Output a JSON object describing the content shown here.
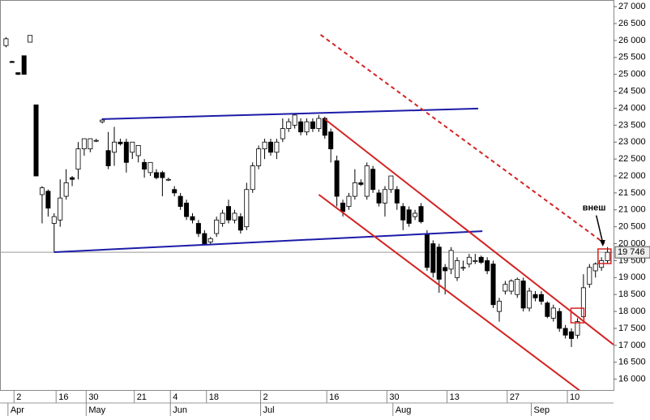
{
  "chart_data": {
    "type": "candlestick",
    "xlim": [
      0,
      102
    ],
    "ylim": [
      15800,
      27100
    ],
    "yticks": [
      {
        "value": 16000,
        "label": "16 000"
      },
      {
        "value": 16500,
        "label": "16 500"
      },
      {
        "value": 17000,
        "label": "17 000"
      },
      {
        "value": 17500,
        "label": "17 500"
      },
      {
        "value": 18000,
        "label": "18 000"
      },
      {
        "value": 18500,
        "label": "18 500"
      },
      {
        "value": 19000,
        "label": "19 000"
      },
      {
        "value": 19500,
        "label": "19 500"
      },
      {
        "value": 20000,
        "label": "20 000"
      },
      {
        "value": 20500,
        "label": "20 500"
      },
      {
        "value": 21000,
        "label": "21 000"
      },
      {
        "value": 21500,
        "label": "21 500"
      },
      {
        "value": 22000,
        "label": "22 000"
      },
      {
        "value": 22500,
        "label": "22 500"
      },
      {
        "value": 23000,
        "label": "23 000"
      },
      {
        "value": 23500,
        "label": "23 500"
      },
      {
        "value": 24000,
        "label": "24 000"
      },
      {
        "value": 24500,
        "label": "24 500"
      },
      {
        "value": 25000,
        "label": "25 000"
      },
      {
        "value": 25500,
        "label": "25 500"
      },
      {
        "value": 26000,
        "label": "26 000"
      },
      {
        "value": 26500,
        "label": "26 500"
      },
      {
        "value": 27000,
        "label": "27 000"
      }
    ],
    "xticks": [
      {
        "value": 3,
        "label": "2"
      },
      {
        "value": 10,
        "label": "16"
      },
      {
        "value": 15,
        "label": "30"
      },
      {
        "value": 23,
        "label": "21"
      },
      {
        "value": 29,
        "label": "4"
      },
      {
        "value": 35,
        "label": "18"
      },
      {
        "value": 44,
        "label": "2"
      },
      {
        "value": 55,
        "label": "16"
      },
      {
        "value": 65,
        "label": "30"
      },
      {
        "value": 75,
        "label": "13"
      },
      {
        "value": 85,
        "label": "27"
      },
      {
        "value": 95,
        "label": "10"
      }
    ],
    "month_ticks": [
      {
        "value": 2,
        "label": "Apr"
      },
      {
        "value": 15,
        "label": "May"
      },
      {
        "value": 29,
        "label": "Jun"
      },
      {
        "value": 44,
        "label": "Jul"
      },
      {
        "value": 66,
        "label": "Aug"
      },
      {
        "value": 89,
        "label": "Sep"
      }
    ],
    "last_price": {
      "value": 19746,
      "label": "19 746"
    },
    "up_color": "#ffffff",
    "down_color": "#000000",
    "open": [
      25850,
      25380,
      25050,
      25550,
      25950,
      24100,
      21450,
      21550,
      20600,
      20700,
      21400,
      21950,
      22200,
      22800,
      22800,
      23050,
      23600,
      22750,
      22700,
      23000,
      23000,
      22700,
      22600,
      22400,
      22100,
      22100,
      22100,
      21900,
      21600,
      21400,
      21200,
      20800,
      20600,
      20300,
      20050,
      20300,
      20600,
      21100,
      20700,
      20800,
      20500,
      21600,
      22300,
      22800,
      23000,
      22700,
      23100,
      23400,
      23500,
      23600,
      23300,
      23600,
      23400,
      23700,
      23300,
      22450,
      21200,
      21100,
      21400,
      21800,
      21400,
      22200,
      21500,
      21200,
      21600,
      21600,
      21100,
      21000,
      20800,
      21100,
      20300,
      20000,
      19900,
      19300,
      19250,
      19000,
      19300,
      19400,
      19500,
      19600,
      19500,
      19400,
      18000,
      18600,
      18600,
      18500,
      18900,
      18100,
      18500,
      18500,
      18250,
      17800,
      18000,
      17500,
      17400,
      17300,
      17850,
      18800,
      19200,
      19300,
      19500
    ],
    "high": [
      26100,
      25400,
      25050,
      25550,
      26150,
      24100,
      21700,
      21600,
      20900,
      21900,
      22200,
      22000,
      23000,
      23100,
      23100,
      23100,
      23700,
      23300,
      23450,
      23100,
      23100,
      23000,
      22900,
      22500,
      22400,
      22200,
      22150,
      21950,
      21700,
      21500,
      21300,
      20900,
      20700,
      20400,
      20200,
      20800,
      21000,
      21300,
      21000,
      20900,
      21800,
      22400,
      22900,
      23100,
      23100,
      23100,
      23700,
      23700,
      23850,
      23700,
      23700,
      23700,
      23800,
      23750,
      23400,
      22600,
      21300,
      21500,
      22200,
      21900,
      22400,
      22300,
      21600,
      21700,
      22000,
      21700,
      21200,
      21100,
      21000,
      21200,
      20400,
      20100,
      20000,
      19400,
      19900,
      19600,
      19500,
      19700,
      19700,
      19650,
      19600,
      19500,
      18400,
      18900,
      18950,
      19000,
      19000,
      18700,
      18600,
      18600,
      18300,
      18200,
      18100,
      17600,
      17500,
      17800,
      19100,
      19400,
      19450,
      19600,
      19900
    ],
    "low": [
      25800,
      25350,
      24980,
      25000,
      25950,
      22000,
      20600,
      20800,
      19750,
      20500,
      21300,
      21700,
      21900,
      22600,
      22700,
      23000,
      23550,
      22200,
      22300,
      22900,
      22100,
      22500,
      22400,
      21950,
      22000,
      21900,
      21400,
      21850,
      21400,
      21000,
      20700,
      20600,
      20200,
      19950,
      19960,
      20200,
      20500,
      20600,
      20600,
      20300,
      20400,
      21500,
      22200,
      22500,
      22600,
      22500,
      23000,
      23300,
      23400,
      23200,
      23200,
      23300,
      23300,
      23100,
      22400,
      21100,
      20800,
      21000,
      21300,
      21700,
      21300,
      21500,
      21100,
      20800,
      21500,
      21000,
      20400,
      20500,
      20700,
      20600,
      19200,
      19000,
      18550,
      18500,
      19100,
      18900,
      19200,
      19300,
      19400,
      19400,
      19100,
      18100,
      17700,
      18500,
      18500,
      18400,
      18000,
      18000,
      18300,
      18200,
      17800,
      17700,
      17400,
      17200,
      16950,
      17200,
      17800,
      18700,
      19000,
      19200,
      19400
    ],
    "close": [
      26050,
      25350,
      25000,
      25000,
      26150,
      22000,
      21650,
      21050,
      20800,
      21350,
      21800,
      21900,
      22800,
      23100,
      23100,
      23050,
      23650,
      22300,
      23000,
      22950,
      22400,
      23000,
      22900,
      22200,
      22400,
      21950,
      21950,
      21900,
      21500,
      21100,
      20800,
      20700,
      20300,
      20000,
      20150,
      20700,
      20900,
      20700,
      20900,
      20400,
      21600,
      22300,
      22800,
      23000,
      22700,
      23000,
      23400,
      23600,
      23800,
      23300,
      23600,
      23400,
      23700,
      23200,
      22800,
      21400,
      20950,
      21400,
      21800,
      21750,
      22300,
      21600,
      21200,
      21600,
      22000,
      21200,
      20700,
      20600,
      20900,
      20650,
      19300,
      19150,
      18950,
      19200,
      19800,
      19500,
      19300,
      19600,
      19500,
      19450,
      19200,
      18200,
      18300,
      18800,
      18900,
      18950,
      18100,
      18600,
      18400,
      18300,
      17850,
      18100,
      17500,
      17300,
      17200,
      17700,
      18700,
      19300,
      19400,
      19500,
      19746
    ],
    "trendlines": [
      {
        "color": "#1c1ca8",
        "dashed": false,
        "x": [
          17,
          79.5
        ],
        "y": [
          23680,
          23990
        ]
      },
      {
        "color": "#1c1ca8",
        "dashed": false,
        "x": [
          9,
          80.2
        ],
        "y": [
          19750,
          20370
        ]
      },
      {
        "color": "#d42222",
        "dashed": false,
        "x": [
          54,
          102
        ],
        "y": [
          23680,
          17020
        ]
      },
      {
        "color": "#d42222",
        "dashed": false,
        "x": [
          53,
          102
        ],
        "y": [
          21450,
          14914
        ]
      },
      {
        "color": "#d42222",
        "dashed": true,
        "x": [
          53.3,
          100.5
        ],
        "y": [
          26170,
          20010
        ]
      }
    ],
    "markers": [
      {
        "x": 96,
        "y": 17880,
        "color": "#d42222"
      },
      {
        "x": 100.5,
        "y": 19630,
        "color": "#d42222"
      }
    ],
    "annotation": {
      "text": "внеш",
      "x": 99,
      "y": 21050
    }
  }
}
